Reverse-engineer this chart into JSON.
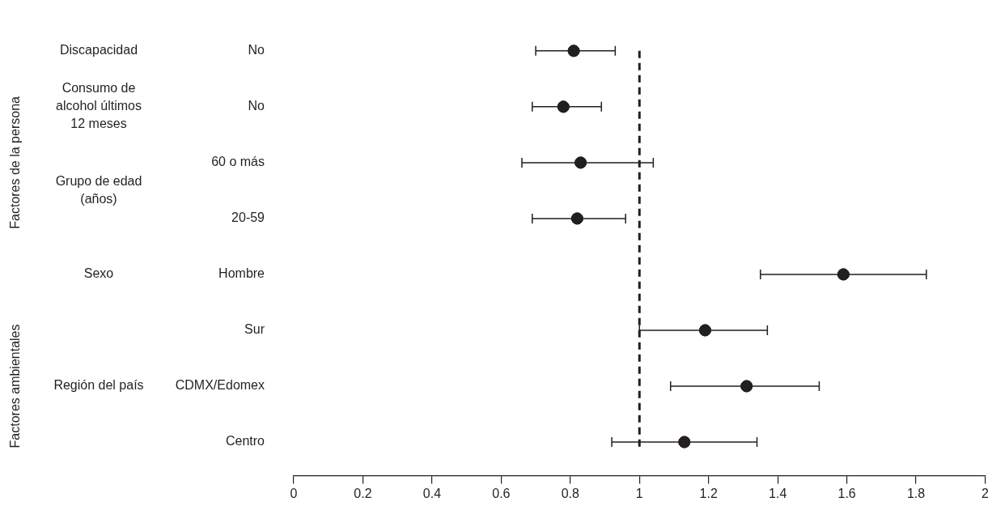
{
  "chart_data": {
    "type": "scatter",
    "orientation": "horizontal",
    "categories": [
      "No",
      "No",
      "60 o más",
      "20-59",
      "Hombre",
      "Sur",
      "CDMX/Edomex",
      "Centro"
    ],
    "values": [
      0.81,
      0.78,
      0.83,
      0.82,
      1.59,
      1.19,
      1.31,
      1.13
    ],
    "errors": [
      [
        0.7,
        0.93
      ],
      [
        0.69,
        0.89
      ],
      [
        0.66,
        1.04
      ],
      [
        0.69,
        0.96
      ],
      [
        1.35,
        1.83
      ],
      [
        1.0,
        1.37
      ],
      [
        1.09,
        1.52
      ],
      [
        0.92,
        1.34
      ]
    ],
    "color": "#231f20",
    "marker": "circle",
    "xlim": [
      0,
      2
    ],
    "xticks": [
      0,
      0.2,
      0.4,
      0.6,
      0.8,
      1,
      1.2,
      1.4,
      1.6,
      1.8,
      2
    ],
    "ref_lines": [
      {
        "axis": "x",
        "value": 1,
        "line_style": "dashed"
      }
    ],
    "annotations": [
      "Factores de la persona",
      "Factores ambientales",
      "Discapacidad",
      "Consumo de alcohol últimos 12 meses",
      "Grupo de edad (años)",
      "Sexo",
      "Región del país"
    ],
    "grid": false,
    "legend": false
  }
}
